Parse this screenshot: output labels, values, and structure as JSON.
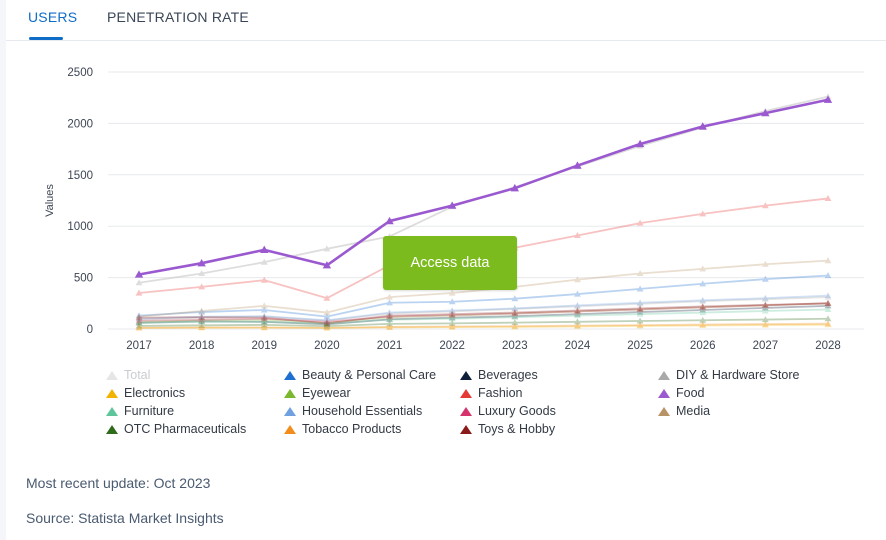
{
  "tabs": [
    {
      "label": "USERS",
      "active": true
    },
    {
      "label": "PENETRATION RATE",
      "active": false
    }
  ],
  "colors": {
    "accent": "#0f6dc8",
    "cta": "#7cbb1e"
  },
  "access_button": {
    "label": "Access data"
  },
  "footer": {
    "update": "Most recent update: Oct 2023",
    "source": "Source: Statista Market Insights"
  },
  "chart_data": {
    "type": "line",
    "xlabel": "",
    "ylabel": "Values",
    "ylim": [
      0,
      2500
    ],
    "yticks": [
      0,
      500,
      1000,
      1500,
      2000,
      2500
    ],
    "grid": true,
    "legend_position": "bottom",
    "marker": "triangle",
    "x": [
      "2017",
      "2018",
      "2019",
      "2020",
      "2021",
      "2022",
      "2023",
      "2024",
      "2025",
      "2026",
      "2027",
      "2028"
    ],
    "series": [
      {
        "name": "Total",
        "color": "#c8c8c8",
        "values": [
          450,
          540,
          650,
          780,
          900,
          1190,
          1380,
          1580,
          1780,
          1960,
          2120,
          2260
        ]
      },
      {
        "name": "Beauty & Personal Care",
        "color": "#1f6fd1",
        "values": [
          130,
          165,
          185,
          120,
          255,
          265,
          295,
          340,
          390,
          440,
          485,
          520
        ]
      },
      {
        "name": "Beverages",
        "color": "#0e1f3a",
        "values": [
          60,
          75,
          70,
          45,
          95,
          110,
          125,
          145,
          165,
          185,
          205,
          225
        ]
      },
      {
        "name": "DIY & Hardware Store",
        "color": "#a9a9a9",
        "values": [
          90,
          110,
          120,
          80,
          150,
          170,
          195,
          220,
          245,
          270,
          290,
          310
        ]
      },
      {
        "name": "Electronics",
        "color": "#f0b400",
        "values": [
          10,
          12,
          12,
          10,
          15,
          18,
          20,
          25,
          30,
          34,
          38,
          42
        ]
      },
      {
        "name": "Eyewear",
        "color": "#7cb82f",
        "values": [
          70,
          85,
          90,
          60,
          115,
          130,
          150,
          170,
          190,
          210,
          230,
          250
        ]
      },
      {
        "name": "Fashion",
        "color": "#e53935",
        "values": [
          350,
          410,
          475,
          300,
          620,
          700,
          790,
          910,
          1030,
          1120,
          1200,
          1270
        ]
      },
      {
        "name": "Food",
        "color": "#9b59d0",
        "values": [
          530,
          640,
          770,
          620,
          1050,
          1200,
          1370,
          1590,
          1800,
          1970,
          2100,
          2230
        ]
      },
      {
        "name": "Furniture",
        "color": "#5ec69a",
        "values": [
          60,
          70,
          70,
          50,
          90,
          100,
          115,
          130,
          145,
          160,
          175,
          190
        ]
      },
      {
        "name": "Household Essentials",
        "color": "#6fa0e0",
        "values": [
          100,
          120,
          125,
          85,
          160,
          180,
          200,
          230,
          255,
          280,
          300,
          325
        ]
      },
      {
        "name": "Luxury Goods",
        "color": "#d6336c",
        "values": [
          80,
          90,
          100,
          70,
          120,
          135,
          150,
          170,
          190,
          210,
          230,
          250
        ]
      },
      {
        "name": "Media",
        "color": "#b89366",
        "values": [
          120,
          175,
          225,
          160,
          310,
          350,
          410,
          480,
          540,
          585,
          630,
          665
        ]
      },
      {
        "name": "OTC Pharmaceuticals",
        "color": "#2e6b1b",
        "values": [
          30,
          36,
          40,
          28,
          50,
          55,
          62,
          70,
          78,
          85,
          92,
          100
        ]
      },
      {
        "name": "Tobacco Products",
        "color": "#f28c1a",
        "values": [
          12,
          15,
          16,
          12,
          20,
          24,
          28,
          33,
          38,
          43,
          48,
          52
        ]
      },
      {
        "name": "Toys & Hobby",
        "color": "#8b1a1a",
        "values": [
          110,
          115,
          110,
          55,
          130,
          145,
          160,
          180,
          200,
          220,
          235,
          250
        ]
      }
    ]
  }
}
